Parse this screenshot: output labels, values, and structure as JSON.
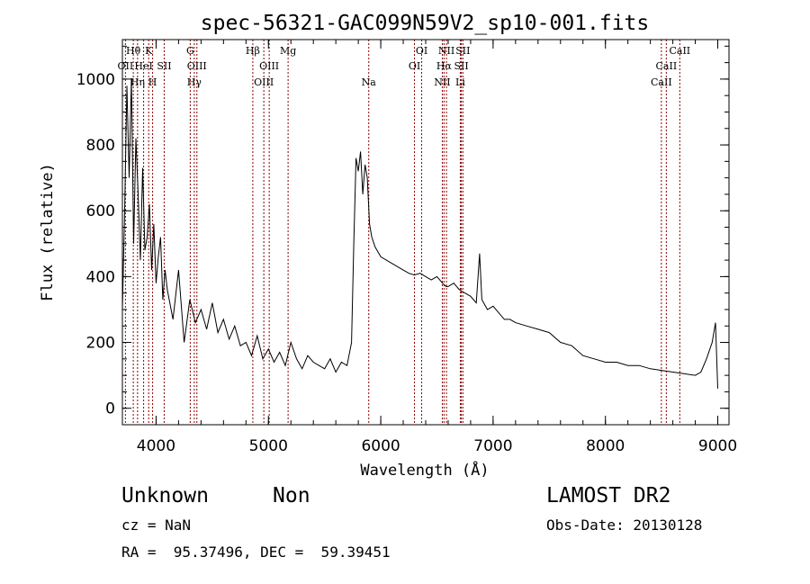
{
  "chart_data": {
    "type": "line",
    "title": "spec-56321-GAC099N59V2_sp10-001.fits",
    "xlabel": "Wavelength (Å)",
    "ylabel": "Flux (relative)",
    "xlim": [
      3700,
      9100
    ],
    "ylim": [
      -50,
      1120
    ],
    "xticks": [
      4000,
      5000,
      6000,
      7000,
      8000,
      9000
    ],
    "xtick_labels": [
      "4000",
      "5000",
      "6000",
      "7000",
      "8000",
      "9000"
    ],
    "yticks": [
      0,
      200,
      400,
      600,
      800,
      1000
    ],
    "ytick_labels": [
      "0",
      "200",
      "400",
      "600",
      "800",
      "1000"
    ],
    "series": [
      {
        "name": "flux",
        "x": [
          3700,
          3720,
          3740,
          3760,
          3780,
          3800,
          3820,
          3840,
          3860,
          3880,
          3900,
          3920,
          3940,
          3960,
          3980,
          4000,
          4020,
          4040,
          4060,
          4080,
          4100,
          4150,
          4200,
          4250,
          4300,
          4350,
          4400,
          4450,
          4500,
          4550,
          4600,
          4650,
          4700,
          4750,
          4800,
          4850,
          4900,
          4950,
          5000,
          5050,
          5100,
          5150,
          5200,
          5250,
          5300,
          5350,
          5400,
          5450,
          5500,
          5550,
          5600,
          5650,
          5700,
          5740,
          5760,
          5780,
          5800,
          5820,
          5840,
          5860,
          5880,
          5900,
          5920,
          5950,
          6000,
          6050,
          6100,
          6150,
          6200,
          6250,
          6300,
          6350,
          6400,
          6450,
          6500,
          6550,
          6580,
          6600,
          6650,
          6700,
          6750,
          6800,
          6850,
          6880,
          6900,
          6950,
          7000,
          7050,
          7100,
          7150,
          7200,
          7300,
          7400,
          7500,
          7600,
          7700,
          7800,
          7900,
          8000,
          8100,
          8200,
          8300,
          8400,
          8500,
          8600,
          8700,
          8800,
          8850,
          8900,
          8950,
          8980,
          9000
        ],
        "y": [
          300,
          600,
          980,
          700,
          1000,
          500,
          820,
          650,
          450,
          730,
          480,
          520,
          620,
          420,
          560,
          380,
          460,
          520,
          330,
          420,
          360,
          270,
          420,
          200,
          330,
          260,
          300,
          240,
          320,
          230,
          270,
          210,
          250,
          190,
          200,
          160,
          220,
          150,
          180,
          140,
          170,
          130,
          200,
          150,
          120,
          160,
          140,
          130,
          120,
          150,
          110,
          140,
          130,
          200,
          500,
          760,
          720,
          780,
          650,
          740,
          700,
          560,
          520,
          490,
          460,
          450,
          440,
          430,
          420,
          410,
          405,
          410,
          400,
          390,
          400,
          380,
          370,
          370,
          380,
          360,
          350,
          340,
          320,
          470,
          330,
          300,
          310,
          290,
          270,
          270,
          260,
          250,
          240,
          230,
          200,
          190,
          160,
          150,
          140,
          140,
          130,
          130,
          120,
          115,
          110,
          105,
          100,
          110,
          150,
          200,
          260,
          60
        ]
      }
    ],
    "annotations": [
      {
        "label": "Hθ",
        "wavelength": 3797,
        "row": 0
      },
      {
        "label": "K",
        "wavelength": 3934,
        "row": 0
      },
      {
        "label": "G",
        "wavelength": 4304,
        "row": 0
      },
      {
        "label": "Hβ",
        "wavelength": 4861,
        "row": 0
      },
      {
        "label": "Mg",
        "wavelength": 5175,
        "row": 0
      },
      {
        "label": "OI",
        "wavelength": 6364,
        "row": 0
      },
      {
        "label": "NII",
        "wavelength": 6585,
        "row": 0
      },
      {
        "label": "SII",
        "wavelength": 6731,
        "row": 0
      },
      {
        "label": "CaII",
        "wavelength": 8662,
        "row": 0
      },
      {
        "label": "OII",
        "wavelength": 3727,
        "row": 1
      },
      {
        "label": "HeI",
        "wavelength": 3889,
        "row": 1
      },
      {
        "label": "SII",
        "wavelength": 4072,
        "row": 1
      },
      {
        "label": "OIII",
        "wavelength": 4363,
        "row": 1
      },
      {
        "label": "OIII",
        "wavelength": 5007,
        "row": 1
      },
      {
        "label": "OI",
        "wavelength": 6300,
        "row": 1
      },
      {
        "label": "Hα",
        "wavelength": 6563,
        "row": 1
      },
      {
        "label": "SII",
        "wavelength": 6717,
        "row": 1
      },
      {
        "label": "CaII",
        "wavelength": 8542,
        "row": 1
      },
      {
        "label": "Hη",
        "wavelength": 3835,
        "row": 2
      },
      {
        "label": "H",
        "wavelength": 3969,
        "row": 2
      },
      {
        "label": "Hγ",
        "wavelength": 4340,
        "row": 2
      },
      {
        "label": "OIII",
        "wavelength": 4959,
        "row": 2
      },
      {
        "label": "Na",
        "wavelength": 5893,
        "row": 2
      },
      {
        "label": "NII",
        "wavelength": 6548,
        "row": 2
      },
      {
        "label": "Li",
        "wavelength": 6708,
        "row": 2
      },
      {
        "label": "CaII",
        "wavelength": 8498,
        "row": 2
      }
    ],
    "line_color": "#000000",
    "marker_color": "#8b0000"
  },
  "info": {
    "object_class": "Unknown",
    "object_subclass": "Non",
    "survey": "LAMOST DR2",
    "redshift": "cz = NaN",
    "obs_date": "Obs-Date: 20130128",
    "coords": "RA =  95.37496, DEC =  59.39451"
  }
}
